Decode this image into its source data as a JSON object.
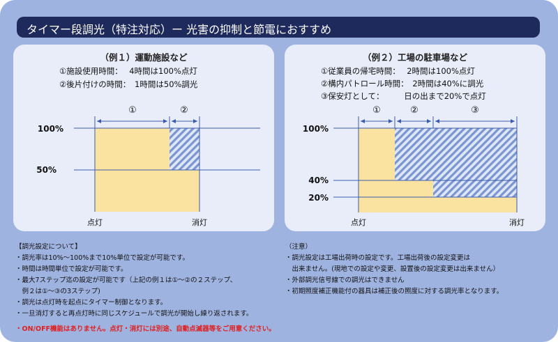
{
  "title": "タイマー段調光（特注対応）ー 光害の抑制と節電におすすめ",
  "panel1": {
    "heading": "（例１）運動施設など",
    "lines": [
      "①施設使用時間：　 4時間は100%点灯",
      "②後片付けの時間：　1時間は50%調光"
    ],
    "markers": [
      "①",
      "②"
    ],
    "y_labels": [
      "100%",
      "50%"
    ],
    "x_labels": [
      "点灯",
      "消灯"
    ],
    "chart_data": {
      "type": "area",
      "segments": [
        {
          "label": "①",
          "duration_hours": 4,
          "level_percent": 100
        },
        {
          "label": "②",
          "duration_hours": 1,
          "level_percent": 50
        }
      ]
    }
  },
  "panel2": {
    "heading": "（例２）工場の駐車場など",
    "lines": [
      "①従業員の帰宅時間：　 2時間は100%点灯",
      "②構内パトロール時間：　2時間は40%に調光",
      "③保安灯として：　　　日の出まで20%で点灯"
    ],
    "markers": [
      "①",
      "②",
      "③"
    ],
    "y_labels": [
      "100%",
      "40%",
      "20%"
    ],
    "x_labels": [
      "点灯",
      "消灯"
    ],
    "chart_data": {
      "type": "area",
      "segments": [
        {
          "label": "①",
          "level_percent": 100
        },
        {
          "label": "②",
          "level_percent": 40
        },
        {
          "label": "③",
          "level_percent": 20
        }
      ]
    }
  },
  "settings": {
    "heading": "【調光設定について】",
    "items": [
      "・調光率は10%～100%まで10%単位で設定が可能です。",
      "・時間は時間単位で設定が可能です。",
      "・最大7ステップ迄の設定が可能です（上記の例１は①～②の２ステップ、",
      "　例２は①～③の3ステップ)",
      "・調光は点灯時を起点にタイマー制御となります。",
      "・一旦消灯すると再点灯時に同じスケジュールで調光が開始し繰り返されます。"
    ],
    "warning": "・ON/OFF機能はありません。点灯・消灯には別途、自動点滅器等をご用意ください。"
  },
  "notes": {
    "heading": "（注意）",
    "items": [
      "・調光設定は工場出荷時の設定です。工場出荷後の設定変更は",
      "　出来ません。(現地での設定や変更、設置後の設定変更は出来ません）",
      "・外部調光信号線での調光はできません",
      "・初期照度補正機能付の器具は補正後の照度に対する調光率となります。"
    ]
  },
  "colors": {
    "background": "#9fb3e0",
    "title_bar": "#1e2a5c",
    "panel": "#e8edf9",
    "fill": "#fae3a0",
    "hatch": "#7a96d2",
    "line": "#3a5bb0",
    "warning": "#e02020"
  }
}
